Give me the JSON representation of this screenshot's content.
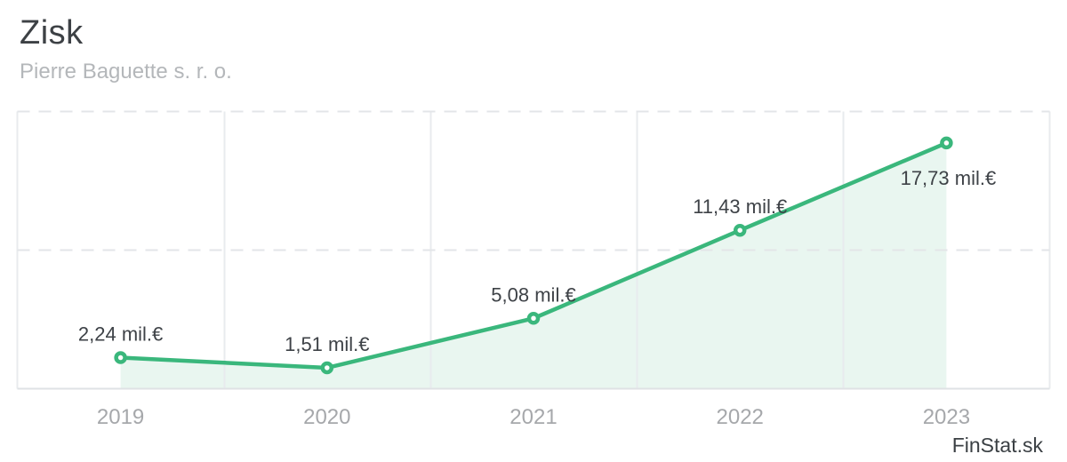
{
  "header": {
    "title": "Zisk",
    "subtitle": "Pierre Baguette s. r. o."
  },
  "watermark": "FinStat.sk",
  "chart_data": {
    "type": "area",
    "title": "Zisk",
    "subtitle": "Pierre Baguette s. r. o.",
    "categories": [
      "2019",
      "2020",
      "2021",
      "2022",
      "2023"
    ],
    "series": [
      {
        "name": "Zisk",
        "values": [
          2.24,
          1.51,
          5.08,
          11.43,
          17.73
        ]
      }
    ],
    "point_labels": [
      "2,24 mil.€",
      "1,51 mil.€",
      "5,08 mil.€",
      "11,43 mil.€",
      "17,73 mil.€"
    ],
    "label_placement": [
      "above",
      "above",
      "above",
      "above",
      "below"
    ],
    "unit": "mil.€",
    "xlabel": "",
    "ylabel": "",
    "ylim": [
      0,
      20
    ],
    "y_gridline_values": [
      10,
      20
    ],
    "grid": "horizontal dashed, vertical solid band separators, no y tick labels",
    "legend": "none",
    "colors": {
      "line": "#3ab77c",
      "area_fill": "#e9f6f0",
      "marker_fill": "#ffffff",
      "grid_dashed": "#e3e5e8",
      "grid_solid": "#e8ebee",
      "axis_line": "#dfe2e5",
      "point_label": "#3e4247",
      "tick_label": "#a6a8ab"
    }
  }
}
